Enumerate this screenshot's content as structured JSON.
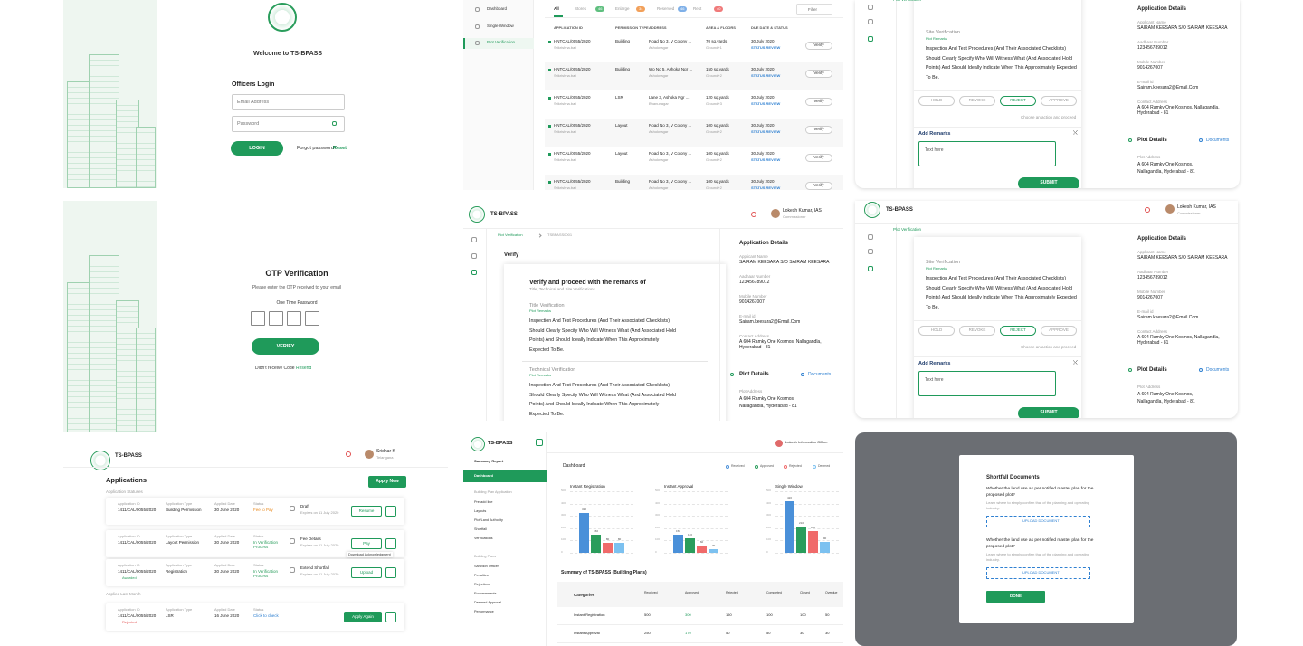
{
  "brand": "TS-BPASS",
  "officer": {
    "name": "Lokesh Kumar, IAS",
    "role": "Commissioner"
  },
  "login": {
    "title": "Welcome to TS-BPASS",
    "heading": "Officers Login",
    "email": "Email Address",
    "password": "Password",
    "button": "LOGIN",
    "forgot": "Forgot password?",
    "reset": "Reset"
  },
  "otp": {
    "title": "OTP Verification",
    "hint": "Please enter the OTP received to your email",
    "label": "One Time Password",
    "button": "VERIFY",
    "no_code": "Didn't receive Code",
    "resend": "Resend"
  },
  "inbox": {
    "nav": [
      "Dashboard",
      "Single Window",
      "Plot Verification"
    ],
    "tabs": [
      {
        "label": "All"
      },
      {
        "label": "Stores",
        "count": "46"
      },
      {
        "label": "Enlarge",
        "count": "34"
      },
      {
        "label": "Reserved",
        "count": "46"
      },
      {
        "label": "Rest",
        "count": "40"
      }
    ],
    "filter": "Filter",
    "columns": [
      "APPLICATION ID",
      "PERMISSION TYPE",
      "ADDRESS",
      "AREA & FLOORS",
      "DUE DATE & STATUS"
    ],
    "status": "STATUS REVIEW",
    "action": "Verify",
    "rows": [
      [
        "HNTCAL/0055/2020",
        "Srikrishna.bali",
        "Building",
        "Road No 3, V Colony ...",
        "Ashoknagar",
        "70 sq.yards",
        "Ground+1",
        "30 July 2020"
      ],
      [
        "HNTCAL/0055/2020",
        "Srikrishna.bali",
        "Building",
        "Wo No 5, Ashoka Ngr ...",
        "Ashoknagar",
        "150 sq.yards",
        "Ground+2",
        "30 July 2020"
      ],
      [
        "HNTCAL/0055/2020",
        "Srikrishna.bali",
        "LSR",
        "Lane 3, Ashoka Ngr ...",
        "Bhanunagar",
        "120 sq.yards",
        "Ground+3",
        "30 July 2020"
      ],
      [
        "HNTCAL/0055/2020",
        "Srikrishna.bali",
        "Layout",
        "Road No 3, V Colony ...",
        "Ashoknagar",
        "100 sq.yards",
        "Ground+2",
        "30 July 2020"
      ],
      [
        "HNTCAL/0055/2020",
        "Srikrishna.bali",
        "Layout",
        "Road No 3, V Colony ...",
        "Ashoknagar",
        "100 sq.yards",
        "Ground+2",
        "30 July 2020"
      ],
      [
        "HNTCAL/0055/2020",
        "Srikrishna.bali",
        "Building",
        "Road No 3, V Colony ...",
        "Ashoknagar",
        "100 sq.yards",
        "Ground+2",
        "30 July 2020"
      ],
      [
        "HNTCAL/0055/2020",
        "Srikrishna.bali",
        "Building",
        "Road No 3, V Colony ...",
        "Ashoknagar",
        "100 sq.yards",
        "Ground+2",
        "30 July 2020"
      ]
    ]
  },
  "remarks": {
    "crumb": "Plot Verification",
    "section": "Site Verification",
    "sub": "Plot Remarks",
    "text": "Inspection And Test Procedures (And Their Associated Checklists) Should Clearly Specify Who Will Witness What (And Associated Hold Points) And Should Ideally Indicate When This Approximately Expected To Be.",
    "actions": [
      "HOLD",
      "REVOKE",
      "REJECT",
      "APPROVE"
    ],
    "hint": "Choose an action and proceed",
    "add": "Add Remarks",
    "placeholder": "Text here",
    "submit": "SUBMIT"
  },
  "details": {
    "title": "Application Details",
    "fields": [
      {
        "label": "Applicant Name",
        "value": "SAIRAM KEESARA S/O SAIRAM KEESARA"
      },
      {
        "label": "Aadhaar Number",
        "value": "123456789012"
      },
      {
        "label": "Mobile Number",
        "value": "9014267007"
      },
      {
        "label": "E-mail id",
        "value": "Sairam.keesara2@Email.Com"
      },
      {
        "label": "Contact Address",
        "value": "A 604 Ramky One Kosmos, Nallagandla, Hyderabad - 81"
      }
    ],
    "plot": "Plot Details",
    "documents": "Documents",
    "plot_field": {
      "label": "Plot Address",
      "value": "A 604 Ramky One Kosmos, Nallagandla, Hyderabad - 81"
    }
  },
  "verify": {
    "crumbs": [
      "Plot Verification",
      "TSBPASS0001"
    ],
    "title": "Verify",
    "card": "Verify and proceed with the remarks of",
    "card_sub": "Title, Technical and Site Verifications",
    "sections": [
      {
        "title": "Title Verification",
        "sub": "Plot Remarks",
        "text": "Inspection And Test Procedures (And Their Associated Checklists) Should Clearly Specify Who Will Witness What (And Associated Hold Points) And Should Ideally Indicate When This Approximately Expected To Be."
      },
      {
        "title": "Technical Verification",
        "sub": "Plot Remarks",
        "text": "Inspection And Test Procedures (And Their Associated Checklists) Should Clearly Specify Who Will Witness What (And Associated Hold Points) And Should Ideally Indicate When This Approximately Expected To Be."
      }
    ]
  },
  "apps": {
    "user": {
      "name": "Sridhar K",
      "role": "Telangana"
    },
    "title": "Applications",
    "apply": "Apply New",
    "group1": "Application Statuses",
    "group2": "Applied Last Month",
    "labels": [
      "Application ID",
      "Application Type",
      "Applied Date",
      "Status"
    ],
    "tooltip": "Download Acknowledgment",
    "rows": [
      {
        "id": "1411/CAL/0055/2020",
        "type": "Building Permission",
        "date": "30 June 2020",
        "status": "Fee to Pay",
        "status_color": "#e8891d",
        "doc": "Draft",
        "expires": "Expires on 11 July 2020",
        "action": "Resume"
      },
      {
        "id": "1411/CAL/0055/2020",
        "type": "Layout Permission",
        "date": "30 June 2020",
        "status": "In Verification Process",
        "status_color": "#2a9d5c",
        "doc": "Fee Details",
        "expires": "Expires on 11 July 2020",
        "action": "Pay"
      },
      {
        "id": "1411/CAL/0055/2020",
        "type": "Registration",
        "date": "30 June 2020",
        "status": "In Verification Process",
        "status_color": "#2a9d5c",
        "doc": "Extend Shortfall",
        "expires": "Expires on 11 July 2020",
        "action": "Upload",
        "flag": "Awarded",
        "flag_color": "#2a9d5c"
      },
      {
        "id": "1411/CAL/0055/2020",
        "type": "LSR",
        "date": "16 June 2020",
        "status": "Click to check",
        "status_color": "#2f80d1",
        "action": "Apply Again",
        "flag": "Rejected",
        "flag_color": "#e04848"
      }
    ]
  },
  "dash": {
    "nav": [
      "Summary Report",
      "Dashboard"
    ],
    "group1": "Building Plan Application",
    "items1": [
      "Pre-add line",
      "Layouts",
      "Plot/Land Authority",
      "Shortfall",
      "Verifications"
    ],
    "group2": "Building Plans",
    "items2": [
      "Sanction Officer",
      "Penalties",
      "Rejections",
      "Endorsements",
      "Deemed Approval",
      "Performance"
    ],
    "user": "Lokesh Information Officer",
    "title": "Dashboard",
    "chart_data": {
      "type": "bar",
      "series": [
        {
          "name": "Received",
          "color": "#4a90d9"
        },
        {
          "name": "Approved",
          "color": "#2a9d5c"
        },
        {
          "name": "Rejected",
          "color": "#f06a6a"
        },
        {
          "name": "Deemed",
          "color": "#7cc1f0"
        }
      ],
      "ylim": [
        0,
        500
      ],
      "yticks": [
        0,
        100,
        200,
        300,
        400,
        500
      ],
      "grid": true,
      "charts": [
        {
          "title": "Instant Registration",
          "values": [
            320,
            150,
            80,
            80
          ]
        },
        {
          "title": "Instant Approval",
          "values": [
            150,
            120,
            60,
            30
          ]
        },
        {
          "title": "Single Window",
          "values": [
            420,
            210,
            180,
            90
          ]
        }
      ]
    },
    "table": {
      "title": "Summary of TS-BPASS (Building Plans)",
      "columns": [
        "Categories",
        "Received",
        "Approved",
        "Rejected",
        "Completed",
        "Closed",
        "Overdue"
      ],
      "rows": [
        [
          "Instant Registration",
          "500",
          "300",
          "150",
          "100",
          "100",
          "50"
        ],
        [
          "Instant Approval",
          "250",
          "170",
          "50",
          "50",
          "30",
          "30"
        ]
      ]
    }
  },
  "shortfall": {
    "title": "Shortfall Documents",
    "items": [
      {
        "q": "Whether the land use as per notified master plan for the proposed plot?",
        "hint": "Learn where to simply confirm that of the planning and operating industry.",
        "upload": "UPLOAD DOCUMENT"
      },
      {
        "q": "Whether the land use as per notified master plan for the proposed plot?",
        "hint": "Learn where to simply confirm that of the planning and operating industry.",
        "upload": "UPLOAD DOCUMENT"
      }
    ],
    "done": "DONE"
  }
}
